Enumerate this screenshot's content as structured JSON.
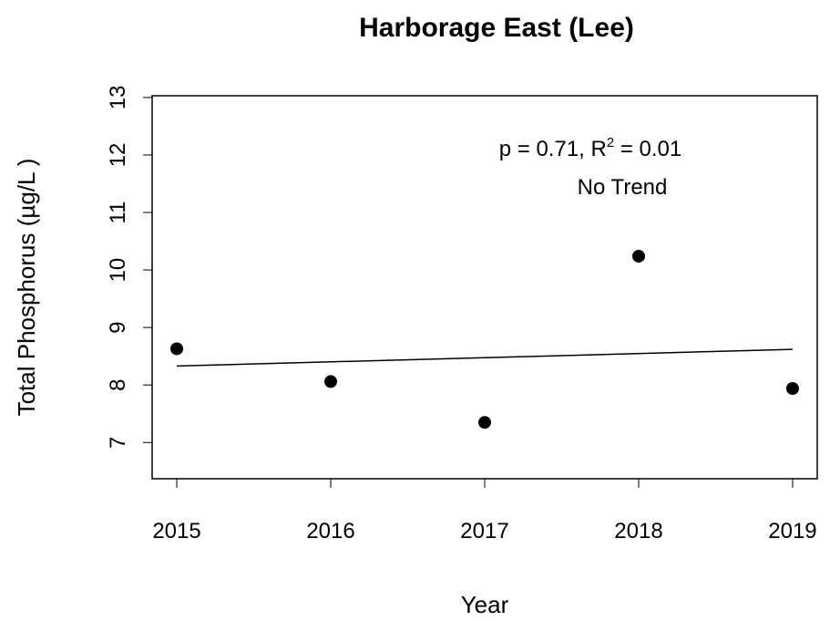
{
  "chart_data": {
    "type": "scatter",
    "title": "Harborage East (Lee)",
    "xlabel": "Year",
    "ylabel": "Total Phosphorus (µg/L )",
    "x": [
      2015,
      2016,
      2017,
      2018,
      2019
    ],
    "values": [
      8.63,
      8.06,
      7.35,
      10.24,
      7.94
    ],
    "color": "#000000",
    "fit_line": {
      "x": [
        2015,
        2019
      ],
      "values": [
        8.33,
        8.62
      ]
    },
    "annotation_parts": [
      "p = 0.71, R",
      "2",
      " = 0.01"
    ],
    "annotation_line2": "No Trend",
    "xlim": [
      2014.84,
      2019.16
    ],
    "xticks": [
      2015,
      2016,
      2017,
      2018,
      2019
    ],
    "ylim": [
      6.37,
      13.03
    ],
    "yticks": [
      7,
      8,
      9,
      10,
      11,
      12,
      13
    ],
    "grid": false
  }
}
